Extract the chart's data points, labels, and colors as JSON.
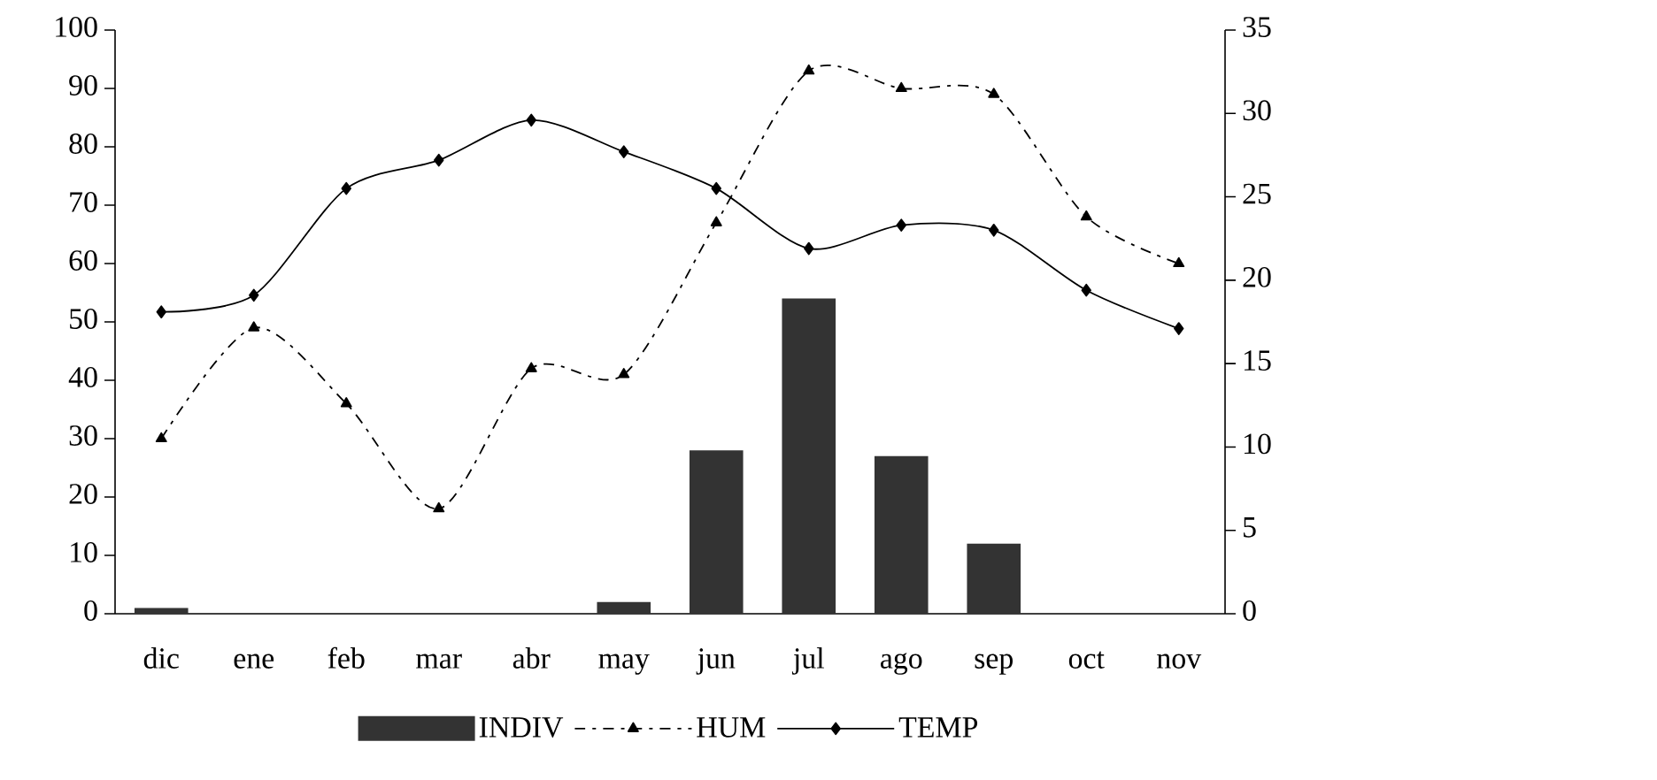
{
  "chart_data": {
    "type": "bar",
    "categories": [
      "dic",
      "ene",
      "feb",
      "mar",
      "abr",
      "may",
      "jun",
      "jul",
      "ago",
      "sep",
      "oct",
      "nov"
    ],
    "series": [
      {
        "name": "INDIV",
        "color": "#333333",
        "values": [
          1,
          null,
          null,
          null,
          null,
          2,
          28,
          54,
          27,
          12,
          null,
          null
        ]
      },
      {
        "name": "HUM",
        "type": "line",
        "color": "#000000",
        "marker": "triangle",
        "line_style": "dashed",
        "values": [
          30,
          49,
          36,
          18,
          42,
          41,
          67,
          93,
          90,
          89,
          68,
          60
        ]
      },
      {
        "name": "TEMP",
        "type": "line",
        "axis": "y2",
        "color": "#000000",
        "marker": "diamond",
        "line_style": "solid",
        "values": [
          18.1,
          19.1,
          25.5,
          27.2,
          29.6,
          27.7,
          25.5,
          21.9,
          23.3,
          23.0,
          19.4,
          17.1
        ]
      }
    ],
    "ylim": [
      0,
      100
    ],
    "yticks": [
      0,
      10,
      20,
      30,
      40,
      50,
      60,
      70,
      80,
      90,
      100
    ],
    "y2lim": [
      0,
      35
    ],
    "y2ticks": [
      0,
      5,
      10,
      15,
      20,
      25,
      30,
      35
    ],
    "legend": "bottom"
  }
}
